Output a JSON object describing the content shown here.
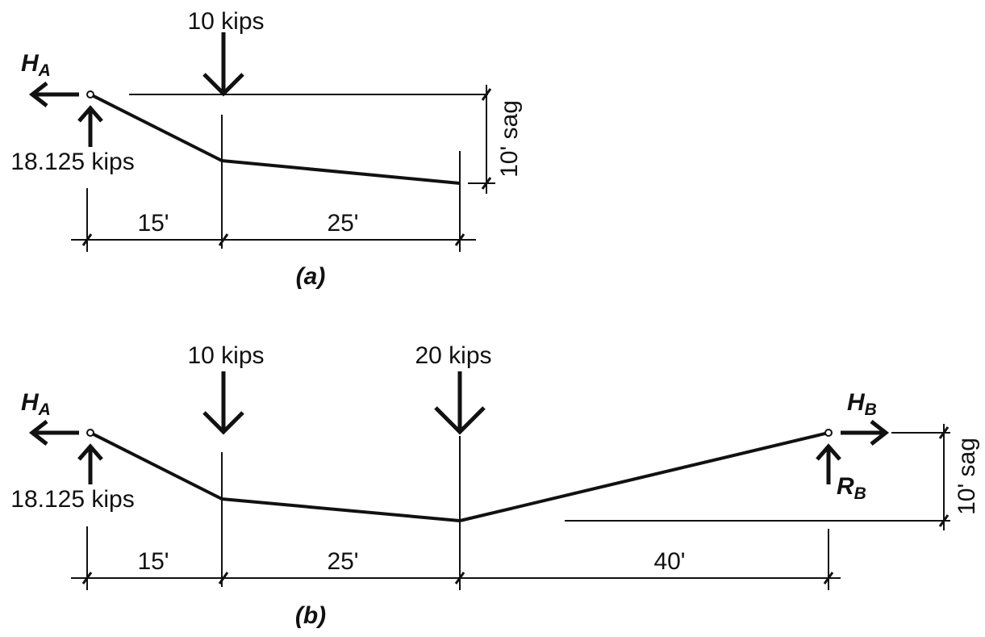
{
  "figure_a": {
    "load": "10 kips",
    "reaction_h": {
      "symbol": "H",
      "subscript": "A"
    },
    "reaction_v": "18.125 kips",
    "sag": "10' sag",
    "spans": [
      "15'",
      "25'"
    ],
    "caption": "(a)"
  },
  "figure_b": {
    "loads": [
      "10 kips",
      "20 kips"
    ],
    "reaction_ha": {
      "symbol": "H",
      "subscript": "A"
    },
    "reaction_va": "18.125 kips",
    "reaction_hb": {
      "symbol": "H",
      "subscript": "B"
    },
    "reaction_rb": {
      "symbol": "R",
      "subscript": "B"
    },
    "sag": "10' sag",
    "spans": [
      "15'",
      "25'",
      "40'"
    ],
    "caption": "(b)"
  }
}
